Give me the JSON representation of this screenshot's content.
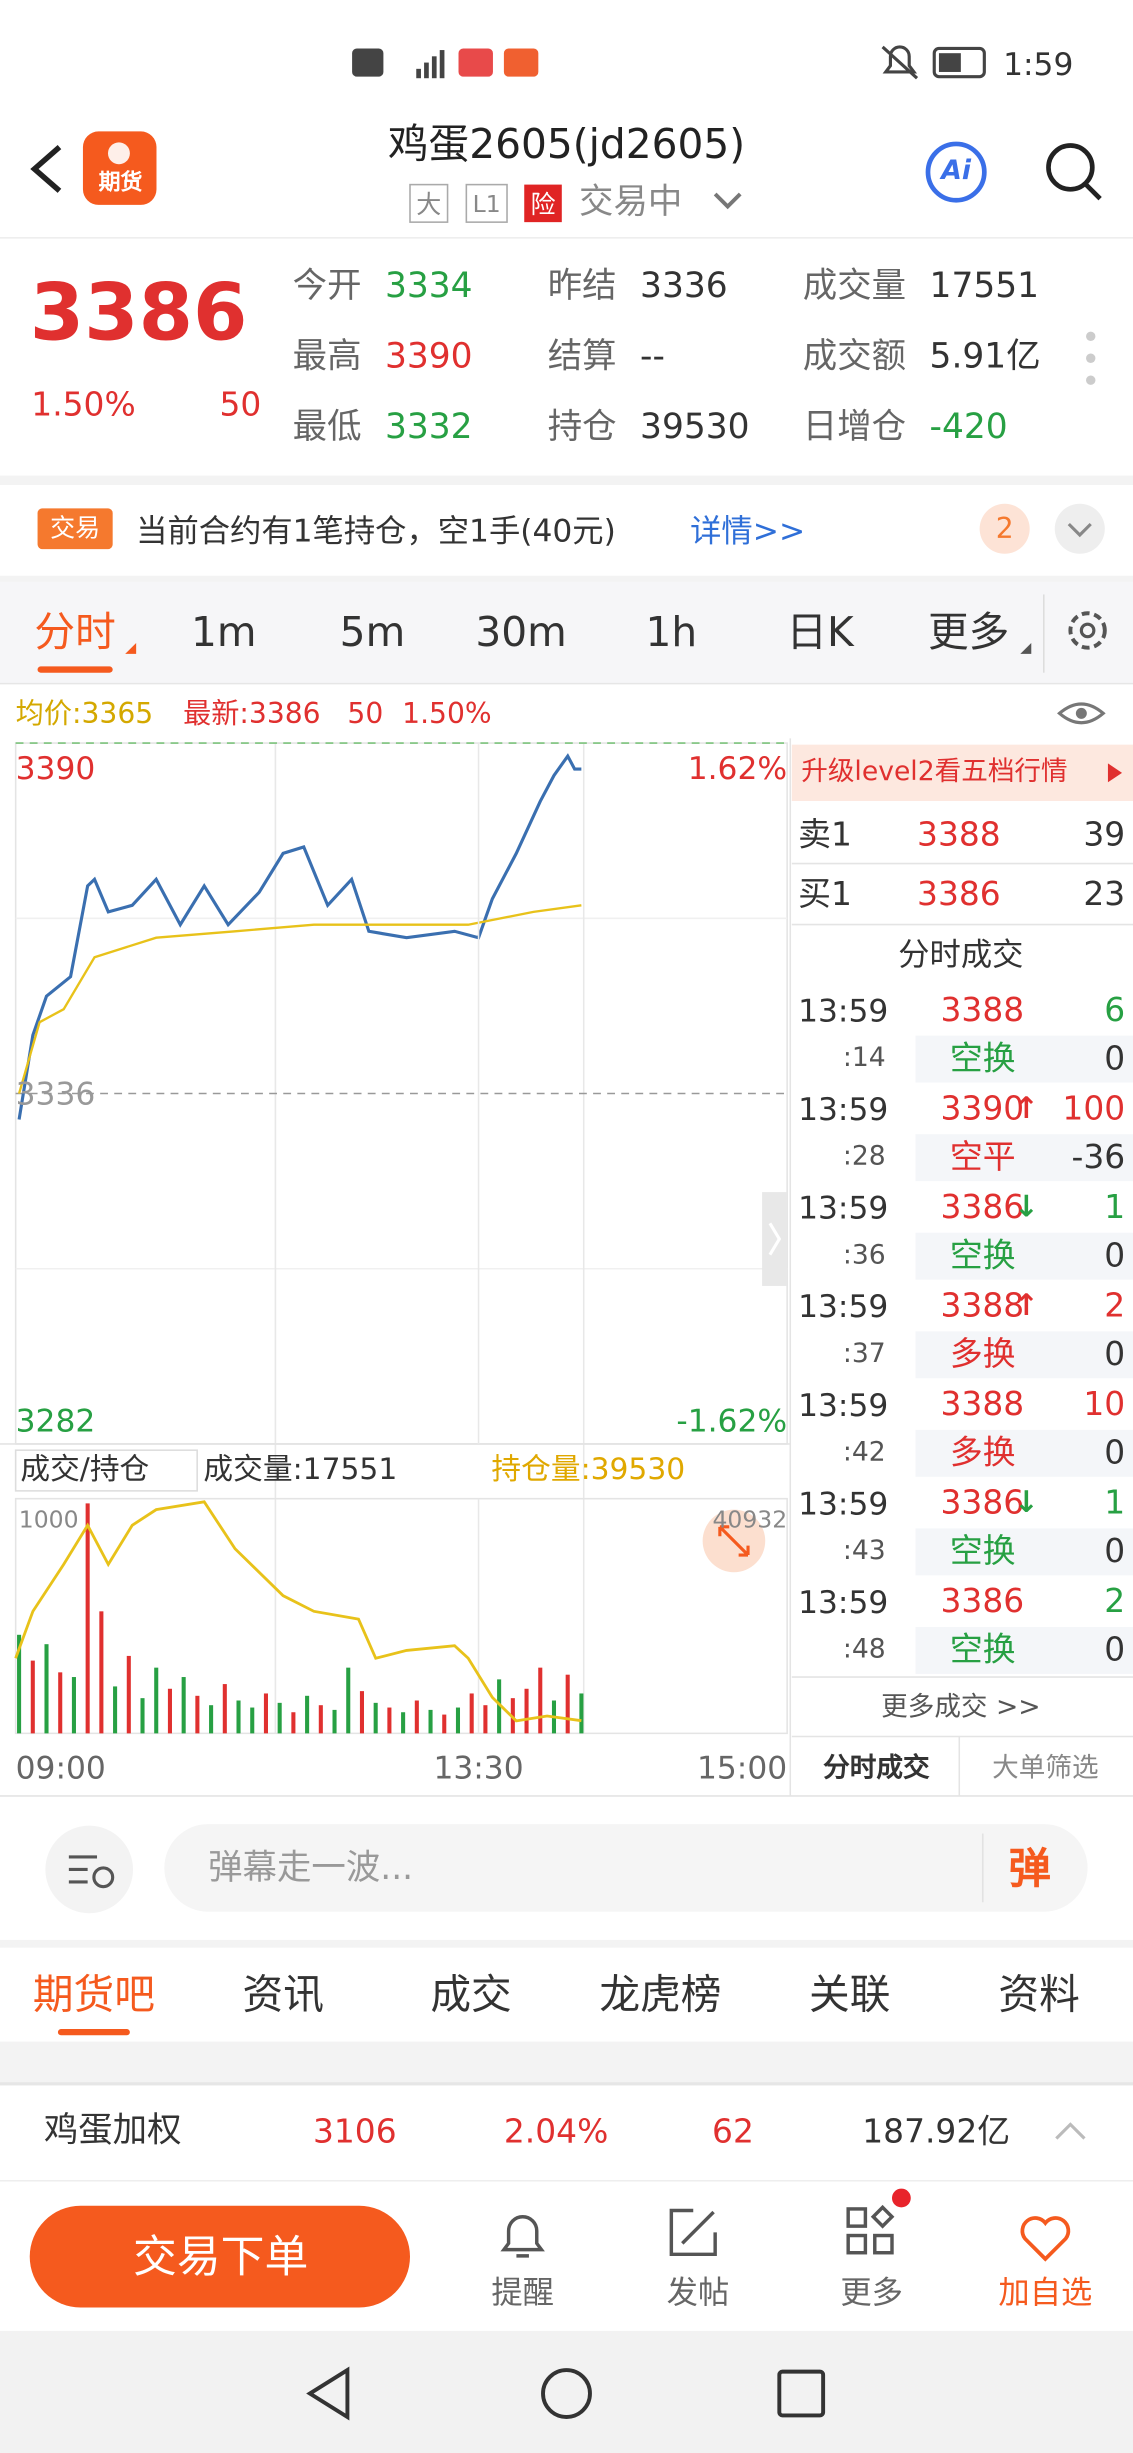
{
  "status_bar": {
    "time": "1:59"
  },
  "header": {
    "logo": "期货",
    "title": "鸡蛋2605(jd2605)",
    "tags": [
      "大",
      "L1",
      "险"
    ],
    "trading_status": "交易中",
    "ai": "Ai"
  },
  "quote": {
    "price": "3386",
    "change_pct": "1.50%",
    "change": "50",
    "fields": [
      {
        "label": "今开",
        "value": "3334",
        "color": "#27a043"
      },
      {
        "label": "昨结",
        "value": "3336",
        "color": "#333333"
      },
      {
        "label": "成交量",
        "value": "17551",
        "color": "#333333"
      },
      {
        "label": "最高",
        "value": "3390",
        "color": "#e0302f"
      },
      {
        "label": "结算",
        "value": "--",
        "color": "#333333"
      },
      {
        "label": "成交额",
        "value": "5.91亿",
        "color": "#333333"
      },
      {
        "label": "最低",
        "value": "3332",
        "color": "#27a043"
      },
      {
        "label": "持仓",
        "value": "39530",
        "color": "#333333"
      },
      {
        "label": "日增仓",
        "value": "-420",
        "color": "#27a043"
      }
    ]
  },
  "notice": {
    "tag": "交易",
    "text": "当前合约有1笔持仓，空1手(40元)",
    "link": "详情>>",
    "badge": "2"
  },
  "tabs": [
    "分时",
    "1m",
    "5m",
    "30m",
    "1h",
    "日K",
    "更多"
  ],
  "info_bar": {
    "avg": "均价:3365",
    "latest": "最新:3386",
    "change": "50",
    "change_pct": "1.50%"
  },
  "chart_data": [
    {
      "type": "line",
      "xlim": [
        0,
        225
      ],
      "ylim": [
        3282,
        3390
      ],
      "yticks": [
        3282,
        3336,
        3390
      ],
      "y2lim": [
        -1.62,
        1.62
      ],
      "y2ticks": [
        {
          "value": -1.62,
          "label": "-1.62%"
        },
        {
          "value": 1.62,
          "label": "1.62%"
        }
      ],
      "series": [
        {
          "color": "#3a6fb0",
          "x": [
            1,
            5,
            9,
            16,
            21,
            23,
            27,
            34,
            41,
            48,
            55,
            62,
            71,
            78,
            84,
            91,
            98,
            103,
            114,
            128,
            135,
            139,
            146,
            153,
            157,
            161,
            163,
            165
          ],
          "values": [
            3332,
            3345,
            3351,
            3354,
            3368,
            3369,
            3364,
            3365,
            3369,
            3362,
            3368,
            3362,
            3367,
            3373,
            3374,
            3365,
            3369,
            3361,
            3360,
            3361,
            3360,
            3366,
            3373,
            3381,
            3385,
            3388,
            3386,
            3386
          ]
        },
        {
          "color": "#e8c21a",
          "x": [
            1,
            7,
            14,
            23,
            41,
            64,
            87,
            110,
            132,
            151,
            165
          ],
          "values": [
            3336,
            3347,
            3349,
            3357,
            3360,
            3361,
            3362,
            3362,
            3362,
            3364,
            3365
          ]
        }
      ]
    },
    {
      "type": "bar",
      "title": "成交/持仓",
      "volume_label": "成交量:17551",
      "oi_label": "持仓量:39530",
      "xlim": [
        0,
        225
      ],
      "xticks": [
        {
          "value": 0,
          "label": "09:00"
        },
        {
          "value": 135,
          "label": "13:30"
        },
        {
          "value": 225,
          "label": "15:00"
        }
      ],
      "ylim": [
        0,
        1000
      ],
      "yticks": [
        1000
      ],
      "y2lim": [
        39450,
        40932
      ],
      "y2ticks": [
        40932
      ],
      "x": [
        1,
        5,
        9,
        13,
        17,
        21,
        25,
        29,
        33,
        37,
        41,
        45,
        49,
        53,
        57,
        61,
        65,
        69,
        73,
        77,
        81,
        85,
        89,
        93,
        97,
        101,
        105,
        109,
        113,
        117,
        121,
        125,
        129,
        133,
        137,
        141,
        145,
        149,
        153,
        157,
        161,
        165
      ],
      "values": [
        420,
        310,
        380,
        260,
        240,
        980,
        520,
        200,
        330,
        150,
        280,
        190,
        240,
        160,
        120,
        210,
        140,
        110,
        170,
        130,
        90,
        160,
        120,
        100,
        280,
        180,
        130,
        110,
        90,
        140,
        100,
        80,
        110,
        170,
        120,
        230,
        150,
        190,
        280,
        140,
        250,
        170
      ],
      "bar_colors": [
        "#27a043",
        "#e0302f",
        "#27a043",
        "#e0302f",
        "#27a043",
        "#e0302f",
        "#e0302f",
        "#27a043",
        "#e0302f",
        "#27a043",
        "#27a043",
        "#e0302f",
        "#27a043",
        "#e0302f",
        "#27a043",
        "#e0302f",
        "#27a043",
        "#27a043",
        "#e0302f",
        "#27a043",
        "#e0302f",
        "#27a043",
        "#e0302f",
        "#27a043",
        "#27a043",
        "#e0302f",
        "#27a043",
        "#e0302f",
        "#27a043",
        "#e0302f",
        "#27a043",
        "#e0302f",
        "#27a043",
        "#e0302f",
        "#e0302f",
        "#27a043",
        "#e0302f",
        "#e0302f",
        "#e0302f",
        "#27a043",
        "#e0302f",
        "#27a043"
      ],
      "line": {
        "color": "#e8c21a",
        "axis": "y2",
        "x": [
          0,
          5,
          14,
          21,
          27,
          34,
          41,
          55,
          64,
          78,
          87,
          100,
          105,
          114,
          128,
          132,
          139,
          146,
          155,
          165
        ],
        "values": [
          39924,
          40221,
          40517,
          40764,
          40517,
          40764,
          40863,
          40912,
          40616,
          40319,
          40221,
          40171,
          39924,
          39974,
          40003,
          39924,
          39677,
          39529,
          39560,
          39530
        ]
      }
    }
  ],
  "order_book": {
    "banner": "升级level2看五档行情",
    "sell": {
      "label": "卖1",
      "price": "3388",
      "volume": "39"
    },
    "buy": {
      "label": "买1",
      "price": "3386",
      "volume": "23"
    },
    "trades_title": "分时成交",
    "trades": [
      {
        "time": "13:59",
        "second": ":14",
        "price": "3388",
        "volume": "6",
        "kind": "空换",
        "oi": "0",
        "color": "#27a043"
      },
      {
        "time": "13:59",
        "second": ":28",
        "price": "3390",
        "arrow": "↑",
        "volume": "100",
        "kind": "空平",
        "oi": "-36",
        "color": "#e0302f"
      },
      {
        "time": "13:59",
        "second": ":36",
        "price": "3386",
        "arrow": "↓",
        "volume": "1",
        "kind": "空换",
        "oi": "0",
        "color": "#27a043"
      },
      {
        "time": "13:59",
        "second": ":37",
        "price": "3388",
        "arrow": "↑",
        "volume": "2",
        "kind": "多换",
        "oi": "0",
        "color": "#e0302f"
      },
      {
        "time": "13:59",
        "second": ":42",
        "price": "3388",
        "volume": "10",
        "kind": "多换",
        "oi": "0",
        "color": "#e0302f"
      },
      {
        "time": "13:59",
        "second": ":43",
        "price": "3386",
        "arrow": "↓",
        "volume": "1",
        "kind": "空换",
        "oi": "0",
        "color": "#27a043"
      },
      {
        "time": "13:59",
        "second": ":48",
        "price": "3386",
        "volume": "2",
        "kind": "空换",
        "oi": "0",
        "color": "#27a043"
      }
    ],
    "more": "更多成交 >>",
    "tabs": [
      "分时成交",
      "大单筛选"
    ]
  },
  "danmaku": {
    "placeholder": "弹幕走一波...",
    "button": "弹"
  },
  "section_tabs": [
    "期货吧",
    "资讯",
    "成交",
    "龙虎榜",
    "关联",
    "资料"
  ],
  "ticker": {
    "name": "鸡蛋加权",
    "price": "3106",
    "change_pct": "2.04%",
    "change": "62",
    "amount": "187.92亿"
  },
  "bottom_bar": {
    "trade": "交易下单",
    "items": [
      "提醒",
      "发帖",
      "更多",
      "加自选"
    ]
  }
}
